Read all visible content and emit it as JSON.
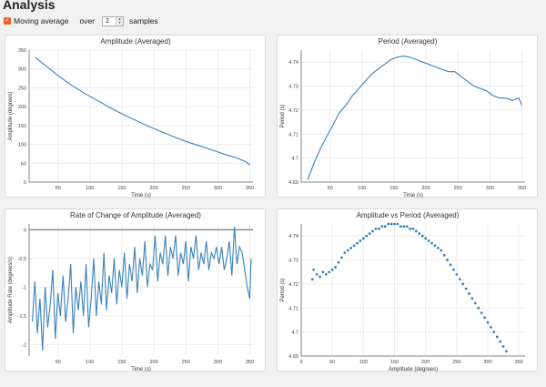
{
  "page": {
    "title": "Analysis",
    "moving_average_label": "Moving average",
    "over_label": "over",
    "samples_value": "2",
    "samples_label": "samples"
  },
  "colors": {
    "line": "#3a81ba",
    "accent": "#e8632b"
  },
  "chart_data": [
    {
      "type": "line",
      "title": "Amplitude (Averaged)",
      "xlabel": "Time (s)",
      "ylabel": "Amplitude (degrees)",
      "xlim": [
        5,
        355
      ],
      "ylim": [
        0,
        350
      ],
      "xticks": [
        50,
        100,
        150,
        200,
        250,
        300,
        350
      ],
      "yticks": [
        0,
        50,
        100,
        150,
        200,
        250,
        300,
        350
      ],
      "grid": true,
      "series": [
        {
          "x": [
            15,
            30,
            50,
            70,
            90,
            110,
            130,
            150,
            170,
            190,
            210,
            230,
            250,
            270,
            290,
            310,
            330,
            345,
            350
          ],
          "y": [
            330,
            310,
            283,
            258,
            237,
            218,
            199,
            181,
            165,
            149,
            135,
            121,
            108,
            97,
            86,
            74,
            64,
            53,
            45
          ]
        }
      ]
    },
    {
      "type": "line",
      "title": "Period (Averaged)",
      "xlabel": "Time (s)",
      "ylabel": "Period (s)",
      "xlim": [
        5,
        355
      ],
      "ylim": [
        4.69,
        4.745
      ],
      "xticks": [
        50,
        100,
        150,
        200,
        250,
        300,
        350
      ],
      "yticks": [
        4.69,
        4.7,
        4.71,
        4.72,
        4.73,
        4.74
      ],
      "grid": true,
      "series": [
        {
          "x": [
            15,
            25,
            35,
            45,
            55,
            65,
            75,
            85,
            95,
            105,
            115,
            125,
            135,
            145,
            155,
            165,
            175,
            185,
            195,
            205,
            215,
            225,
            235,
            245,
            255,
            265,
            275,
            285,
            295,
            305,
            315,
            325,
            335,
            345,
            350
          ],
          "y": [
            4.691,
            4.698,
            4.704,
            4.709,
            4.714,
            4.719,
            4.722,
            4.726,
            4.729,
            4.732,
            4.735,
            4.737,
            4.739,
            4.741,
            4.742,
            4.7425,
            4.742,
            4.741,
            4.74,
            4.739,
            4.738,
            4.737,
            4.736,
            4.736,
            4.734,
            4.732,
            4.73,
            4.729,
            4.728,
            4.726,
            4.725,
            4.725,
            4.724,
            4.725,
            4.722
          ]
        }
      ]
    },
    {
      "type": "line",
      "title": "Rate of Change of Amplitude (Averaged)",
      "xlabel": "Time (s)",
      "ylabel": "Amplitude Rate (degrees/s)",
      "xlim": [
        5,
        355
      ],
      "ylim": [
        -2.2,
        0.1
      ],
      "xticks": [
        50,
        100,
        150,
        200,
        250,
        300,
        350
      ],
      "yticks": [
        0,
        -0.5,
        -1,
        -1.5,
        -2
      ],
      "grid": true,
      "series": [
        {
          "x": [
            10,
            14,
            18,
            22,
            26,
            30,
            34,
            38,
            42,
            46,
            50,
            54,
            58,
            62,
            66,
            70,
            74,
            78,
            82,
            86,
            90,
            94,
            98,
            102,
            106,
            110,
            114,
            118,
            122,
            126,
            130,
            134,
            138,
            142,
            146,
            150,
            154,
            158,
            162,
            166,
            170,
            174,
            178,
            182,
            186,
            190,
            194,
            198,
            202,
            206,
            210,
            214,
            218,
            222,
            226,
            230,
            234,
            238,
            242,
            246,
            250,
            254,
            258,
            262,
            266,
            270,
            274,
            278,
            282,
            286,
            290,
            294,
            298,
            302,
            306,
            310,
            314,
            318,
            322,
            326,
            330,
            334,
            338,
            342,
            346,
            350,
            352
          ],
          "y": [
            -1.6,
            -0.9,
            -1.8,
            -1.2,
            -2.1,
            -1.0,
            -1.7,
            -1.3,
            -0.7,
            -1.9,
            -1.1,
            -1.5,
            -0.8,
            -1.6,
            -1.2,
            -0.6,
            -1.8,
            -1.0,
            -1.4,
            -0.9,
            -1.5,
            -0.6,
            -1.7,
            -1.2,
            -0.5,
            -1.5,
            -0.9,
            -1.3,
            -0.4,
            -1.4,
            -0.8,
            -1.1,
            -0.5,
            -1.3,
            -0.7,
            -1.0,
            -0.4,
            -1.2,
            -0.6,
            -0.9,
            -0.3,
            -1.1,
            -0.5,
            -0.8,
            -0.2,
            -1.0,
            -0.6,
            -0.7,
            -0.1,
            -0.9,
            -0.4,
            -0.6,
            -0.1,
            -0.8,
            -0.3,
            -0.5,
            -0.1,
            -0.8,
            -0.4,
            -0.6,
            -0.2,
            -0.9,
            -0.3,
            -0.5,
            -0.1,
            -0.7,
            -0.4,
            -0.6,
            -0.2,
            -0.7,
            -0.4,
            -0.5,
            -0.3,
            -0.6,
            -0.3,
            -0.7,
            -0.5,
            -0.2,
            -0.8,
            0.05,
            -0.6,
            -0.3,
            -0.4,
            -0.7,
            -1.0,
            -1.2,
            -0.5
          ]
        }
      ]
    },
    {
      "type": "scatter",
      "title": "Amplitude vs Period (Averaged)",
      "xlabel": "Amplitude (degrees)",
      "ylabel": "Period (s)",
      "xlim": [
        0,
        360
      ],
      "ylim": [
        4.69,
        4.745
      ],
      "xticks": [
        0,
        50,
        100,
        150,
        200,
        250,
        300,
        350
      ],
      "yticks": [
        4.69,
        4.7,
        4.71,
        4.72,
        4.73,
        4.74
      ],
      "grid": true,
      "series": [
        {
          "x": [
            330,
            325,
            320,
            315,
            310,
            305,
            300,
            295,
            290,
            285,
            280,
            275,
            270,
            265,
            260,
            255,
            250,
            245,
            240,
            235,
            230,
            225,
            220,
            215,
            210,
            205,
            200,
            195,
            190,
            185,
            180,
            175,
            170,
            165,
            160,
            155,
            150,
            145,
            140,
            135,
            130,
            125,
            120,
            115,
            110,
            105,
            100,
            95,
            90,
            85,
            80,
            75,
            70,
            65,
            60,
            55,
            50,
            45,
            40,
            35,
            30,
            25,
            20,
            18
          ],
          "y": [
            4.692,
            4.694,
            4.696,
            4.698,
            4.7,
            4.702,
            4.704,
            4.706,
            4.708,
            4.71,
            4.712,
            4.714,
            4.716,
            4.718,
            4.72,
            4.722,
            4.724,
            4.726,
            4.728,
            4.73,
            4.732,
            4.734,
            4.735,
            4.736,
            4.737,
            4.738,
            4.739,
            4.74,
            4.741,
            4.742,
            4.743,
            4.743,
            4.744,
            4.744,
            4.744,
            4.745,
            4.745,
            4.745,
            4.745,
            4.744,
            4.744,
            4.743,
            4.743,
            4.742,
            4.741,
            4.74,
            4.739,
            4.738,
            4.737,
            4.736,
            4.735,
            4.734,
            4.733,
            4.731,
            4.729,
            4.727,
            4.726,
            4.725,
            4.724,
            4.725,
            4.723,
            4.724,
            4.726,
            4.722
          ]
        }
      ]
    }
  ]
}
